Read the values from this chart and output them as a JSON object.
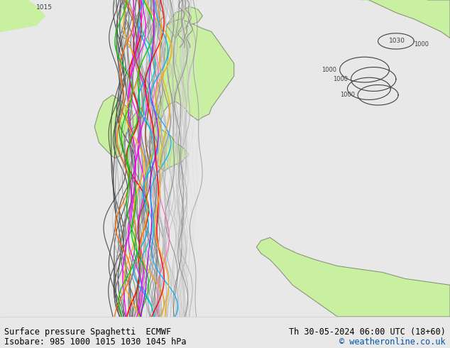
{
  "title_left": "Surface pressure Spaghetti  ECMWF",
  "title_right": "Th 30-05-2024 06:00 UTC (18+60)",
  "subtitle_left": "Isobare: 985 1000 1015 1030 1045 hPa",
  "subtitle_right": "© weatheronline.co.uk",
  "bg_color": "#e8e8e8",
  "land_color": "#c8f0a0",
  "coast_color": "#888888",
  "bottom_bar_color": "#ffffff",
  "bottom_text_color": "#000000",
  "copyright_color": "#0055aa",
  "label_1015": "1015",
  "label_1000_top": "1000",
  "label_1000_mid": "1000",
  "label_1000_bot": "1000",
  "label_1030": "1030"
}
